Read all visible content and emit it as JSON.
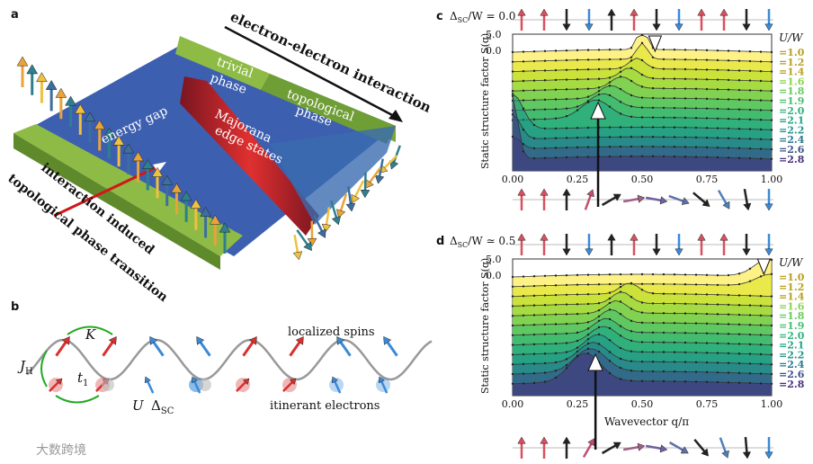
{
  "labels": {
    "a": "a",
    "b": "b",
    "c": "c",
    "d": "d"
  },
  "panel_a": {
    "interaction": "electron-electron interaction",
    "trivial": [
      "trivial",
      "phase"
    ],
    "topological": [
      "topological",
      "phase"
    ],
    "gap": "energy gap",
    "majorana": [
      "Majorana",
      "edge states"
    ],
    "transition": [
      "interaction induced",
      "topological phase transition"
    ]
  },
  "panel_b": {
    "K": "K",
    "JH": {
      "main": "J",
      "sub": "H"
    },
    "t1": {
      "main": "t",
      "sub": "1"
    },
    "U": "U",
    "dsc": {
      "main": "Δ",
      "sub": "SC"
    },
    "localized": "localized spins",
    "itinerant": "itinerant electrons"
  },
  "panel_c": {
    "title": {
      "main": "Δ",
      "sub": "SC",
      "rest": "/W = 0.0"
    },
    "ylabel": "Static structure factor S(q)",
    "yticks": [
      "5.0",
      "0.0"
    ],
    "xticks": [
      "0.00",
      "0.25",
      "0.50",
      "0.75",
      "1.00"
    ],
    "legend_title": "U/W",
    "legend": [
      "=1.0",
      "=1.2",
      "=1.4",
      "=1.6",
      "=1.8",
      "=1.9",
      "=2.0",
      "=2.1",
      "=2.2",
      "=2.4",
      "=2.6",
      "=2.8"
    ]
  },
  "panel_d": {
    "title": {
      "main": "Δ",
      "sub": "SC",
      "rest": "/W ≃ 0.5"
    },
    "ylabel": "Static structure factor S(q)",
    "yticks": [
      "5.0",
      "0.0"
    ],
    "xticks": [
      "0.00",
      "0.25",
      "0.50",
      "0.75",
      "1.00"
    ],
    "xlabel": "Wavevector q/π",
    "legend_title": "U/W",
    "legend": [
      "=1.0",
      "=1.2",
      "=1.4",
      "=1.6",
      "=1.8",
      "=1.9",
      "=2.0",
      "=2.1",
      "=2.2",
      "=2.4",
      "=2.6",
      "=2.8"
    ]
  },
  "watermark": "大数跨境"
}
